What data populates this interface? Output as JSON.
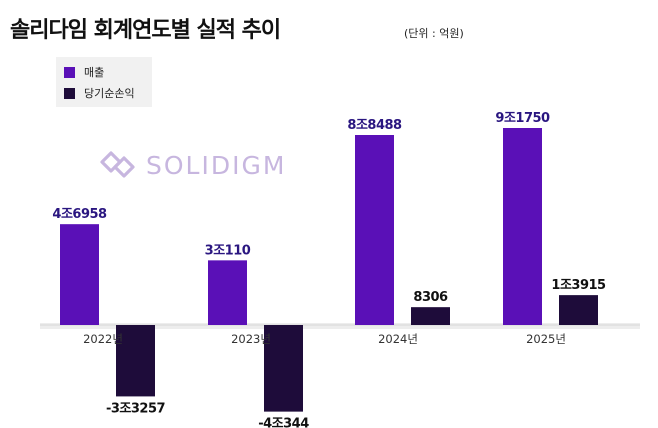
{
  "title": "솔리다임 회계연도별 실적 추이",
  "unit_label": "(단위 : 억원)",
  "logo_text": "SOLIDIGM",
  "colors": {
    "revenue": "#5a10b7",
    "net_income": "#1e0c3a",
    "label": "#2a1680",
    "logo": "#c7b6df"
  },
  "legend": [
    {
      "label": "매출",
      "color": "#5a10b7"
    },
    {
      "label": "당기순손익",
      "color": "#1e0c3a"
    }
  ],
  "chart_data": {
    "type": "bar",
    "title": "솔리다임 회계연도별 실적 추이",
    "unit": "억원",
    "categories": [
      "2022년",
      "2023년",
      "2024년",
      "2025년"
    ],
    "series": [
      {
        "name": "매출",
        "values": [
          46958,
          30110,
          88488,
          91750
        ],
        "labels": [
          "4조6958",
          "3조110",
          "8조8488",
          "9조1750"
        ]
      },
      {
        "name": "당기순손익",
        "values": [
          -33257,
          -40344,
          8306,
          13915
        ],
        "labels": [
          "-3조3257",
          "-4조344",
          "8306",
          "1조3915"
        ]
      }
    ],
    "legend_position": "top-left",
    "grid": false
  }
}
